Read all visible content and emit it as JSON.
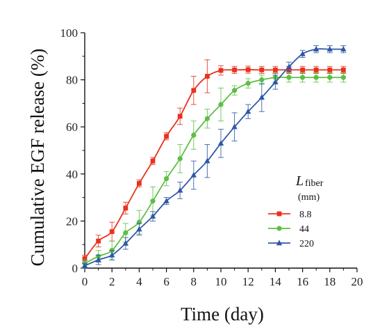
{
  "chart_data": {
    "type": "line",
    "xlabel": "Time (day)",
    "ylabel": "Cumulative EGF release  (%)",
    "xlim": [
      0,
      20
    ],
    "ylim": [
      0,
      100
    ],
    "xticks": [
      "0",
      "2",
      "4",
      "6",
      "8",
      "10",
      "12",
      "14",
      "16",
      "18",
      "20"
    ],
    "yticks": [
      "0",
      "20",
      "40",
      "60",
      "80",
      "100"
    ],
    "grid": false,
    "legend": {
      "position": "right-center",
      "title_main": "L",
      "title_sub": "fiber",
      "title_unit": "(mm)"
    },
    "x": [
      0,
      1,
      2,
      3,
      4,
      5,
      6,
      7,
      8,
      9,
      10,
      11,
      12,
      13,
      14,
      15,
      16,
      17,
      18,
      19
    ],
    "series": [
      {
        "name": "8.8",
        "color": "#e8321e",
        "marker": "square",
        "values": [
          4,
          11.5,
          15.5,
          25.5,
          36,
          45.5,
          56,
          64.5,
          75.5,
          81.5,
          84,
          84.2,
          84.3,
          84.2,
          84.2,
          84.2,
          84.2,
          84.2,
          84.2,
          84.2
        ],
        "errors": [
          1.5,
          2.5,
          4,
          2.5,
          1.5,
          1.5,
          1.5,
          3.5,
          6,
          7,
          2,
          1.5,
          1.5,
          1.5,
          1.5,
          1.5,
          1.5,
          1.5,
          1.5,
          1.5
        ]
      },
      {
        "name": "44",
        "color": "#5cbf43",
        "marker": "circle",
        "values": [
          2,
          5,
          7.5,
          15,
          19.5,
          28.5,
          38,
          46.5,
          56.5,
          63.5,
          69.5,
          75.5,
          78.5,
          80,
          81,
          81,
          81,
          81,
          81,
          81
        ],
        "errors": [
          1.5,
          2.5,
          4,
          4,
          5,
          6,
          3,
          6,
          6,
          4,
          7,
          2,
          2,
          2,
          2,
          2,
          2,
          2,
          2,
          2
        ]
      },
      {
        "name": "220",
        "color": "#2e57a7",
        "marker": "triangle",
        "values": [
          1,
          3.5,
          5.5,
          10.5,
          16.5,
          22,
          28.5,
          33,
          39.5,
          45.5,
          53,
          60,
          66.5,
          72.5,
          79,
          85.5,
          91,
          93,
          93,
          93
        ],
        "errors": [
          1,
          2,
          2,
          2.5,
          2.5,
          2,
          1.5,
          3.5,
          6,
          7,
          6,
          6,
          3,
          6,
          3,
          2,
          1.5,
          1.5,
          1.5,
          1.5
        ]
      }
    ]
  }
}
